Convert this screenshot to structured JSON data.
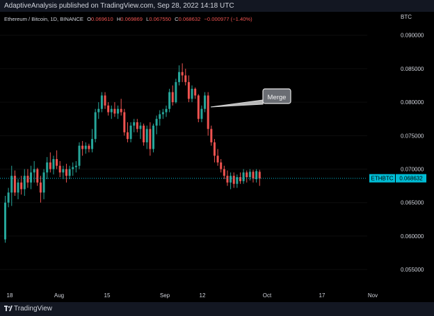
{
  "header": {
    "published": "AdaptiveAnalysis published on TradingView.com, Sep 28, 2022 14:18 UTC"
  },
  "footer": {
    "brand": "TradingView"
  },
  "colors": {
    "up": "#26a69a",
    "down": "#ef5350",
    "last_price": "#00bcd4",
    "bg": "#000000",
    "text": "#d1d4dc"
  },
  "legend": {
    "symbol": "Ethereum / Bitcoin, 1D, BINANCE",
    "o_label": "O",
    "o_value": "0.069610",
    "h_label": "H",
    "h_value": "0.069869",
    "l_label": "L",
    "l_value": "0.067550",
    "c_label": "C",
    "c_value": "0.068632",
    "change": "−0.000977 (−1.40%)"
  },
  "price_axis": {
    "unit": "BTC",
    "ticks": [
      "0.090000",
      "0.085000",
      "0.080000",
      "0.075000",
      "0.070000",
      "0.065000",
      "0.060000",
      "0.055000"
    ]
  },
  "time_axis": {
    "ticks": [
      "18",
      "Aug",
      "15",
      "Sep",
      "12",
      "Oct",
      "17",
      "Nov"
    ]
  },
  "last_price": {
    "symbol": "ETHBTC",
    "value": "0.068632"
  },
  "annotation": {
    "text": "Merge"
  },
  "chart_data": {
    "type": "candlestick",
    "symbol": "ETHBTC",
    "interval": "1D",
    "exchange": "BINANCE",
    "ylim": [
      0.052,
      0.0935
    ],
    "ohlc": [
      [
        0.0595,
        0.066,
        0.059,
        0.065
      ],
      [
        0.065,
        0.0672,
        0.0643,
        0.0665
      ],
      [
        0.0665,
        0.0705,
        0.0645,
        0.069
      ],
      [
        0.069,
        0.0698,
        0.066,
        0.0665
      ],
      [
        0.0665,
        0.0685,
        0.0655,
        0.068
      ],
      [
        0.068,
        0.069,
        0.0662,
        0.067
      ],
      [
        0.067,
        0.07,
        0.066,
        0.069
      ],
      [
        0.069,
        0.07,
        0.0672,
        0.068
      ],
      [
        0.068,
        0.0705,
        0.067,
        0.0695
      ],
      [
        0.0695,
        0.0712,
        0.068,
        0.07
      ],
      [
        0.07,
        0.0702,
        0.0675,
        0.068
      ],
      [
        0.068,
        0.069,
        0.065,
        0.0665
      ],
      [
        0.0665,
        0.07,
        0.0655,
        0.0695
      ],
      [
        0.0695,
        0.0718,
        0.0685,
        0.071
      ],
      [
        0.071,
        0.0725,
        0.0695,
        0.07
      ],
      [
        0.07,
        0.072,
        0.0692,
        0.0715
      ],
      [
        0.0715,
        0.0728,
        0.07,
        0.0705
      ],
      [
        0.0705,
        0.0712,
        0.0688,
        0.0695
      ],
      [
        0.0695,
        0.0705,
        0.0685,
        0.07
      ],
      [
        0.07,
        0.0708,
        0.068,
        0.069
      ],
      [
        0.069,
        0.0705,
        0.0685,
        0.07
      ],
      [
        0.07,
        0.071,
        0.069,
        0.0703
      ],
      [
        0.0703,
        0.0712,
        0.0695,
        0.0705
      ],
      [
        0.0705,
        0.074,
        0.07,
        0.0735
      ],
      [
        0.0735,
        0.0742,
        0.072,
        0.073
      ],
      [
        0.073,
        0.074,
        0.0723,
        0.0735
      ],
      [
        0.0735,
        0.0738,
        0.0725,
        0.073
      ],
      [
        0.073,
        0.076,
        0.0725,
        0.0745
      ],
      [
        0.0745,
        0.079,
        0.074,
        0.0785
      ],
      [
        0.0785,
        0.08,
        0.0775,
        0.079
      ],
      [
        0.079,
        0.0815,
        0.0785,
        0.081
      ],
      [
        0.081,
        0.0815,
        0.079,
        0.0795
      ],
      [
        0.0795,
        0.08,
        0.078,
        0.0785
      ],
      [
        0.0785,
        0.0795,
        0.0775,
        0.079
      ],
      [
        0.079,
        0.08,
        0.0778,
        0.0783
      ],
      [
        0.0783,
        0.0795,
        0.0775,
        0.079
      ],
      [
        0.079,
        0.0805,
        0.078,
        0.0785
      ],
      [
        0.0785,
        0.079,
        0.075,
        0.0755
      ],
      [
        0.0755,
        0.077,
        0.074,
        0.0745
      ],
      [
        0.0745,
        0.077,
        0.074,
        0.0765
      ],
      [
        0.0765,
        0.0775,
        0.0755,
        0.077
      ],
      [
        0.077,
        0.0775,
        0.0755,
        0.076
      ],
      [
        0.076,
        0.077,
        0.0745,
        0.0765
      ],
      [
        0.0765,
        0.0768,
        0.0735,
        0.074
      ],
      [
        0.074,
        0.0765,
        0.073,
        0.076
      ],
      [
        0.076,
        0.077,
        0.072,
        0.073
      ],
      [
        0.073,
        0.0768,
        0.0725,
        0.0765
      ],
      [
        0.0765,
        0.078,
        0.0752,
        0.0775
      ],
      [
        0.0775,
        0.0788,
        0.0765,
        0.0782
      ],
      [
        0.0782,
        0.079,
        0.0775,
        0.0785
      ],
      [
        0.0785,
        0.0795,
        0.0778,
        0.079
      ],
      [
        0.079,
        0.082,
        0.0785,
        0.0815
      ],
      [
        0.0815,
        0.0825,
        0.0795,
        0.08
      ],
      [
        0.08,
        0.0835,
        0.0798,
        0.083
      ],
      [
        0.083,
        0.0855,
        0.0825,
        0.0845
      ],
      [
        0.0845,
        0.0858,
        0.083,
        0.084
      ],
      [
        0.084,
        0.085,
        0.0825,
        0.083
      ],
      [
        0.083,
        0.084,
        0.08,
        0.0805
      ],
      [
        0.0805,
        0.0825,
        0.08,
        0.082
      ],
      [
        0.082,
        0.0822,
        0.0805,
        0.081
      ],
      [
        0.081,
        0.0812,
        0.077,
        0.0775
      ],
      [
        0.0775,
        0.0795,
        0.077,
        0.079
      ],
      [
        0.079,
        0.0815,
        0.0785,
        0.081
      ],
      [
        0.081,
        0.0815,
        0.075,
        0.076
      ],
      [
        0.076,
        0.0765,
        0.0735,
        0.074
      ],
      [
        0.074,
        0.0745,
        0.071,
        0.072
      ],
      [
        0.072,
        0.073,
        0.0705,
        0.071
      ],
      [
        0.071,
        0.0715,
        0.0695,
        0.07
      ],
      [
        0.07,
        0.0705,
        0.0685,
        0.069
      ],
      [
        0.069,
        0.0698,
        0.0675,
        0.068
      ],
      [
        0.068,
        0.0695,
        0.067,
        0.069
      ],
      [
        0.069,
        0.0695,
        0.0672,
        0.0678
      ],
      [
        0.0678,
        0.0692,
        0.0672,
        0.0688
      ],
      [
        0.0688,
        0.0695,
        0.0678,
        0.0682
      ],
      [
        0.0682,
        0.07,
        0.0678,
        0.0695
      ],
      [
        0.0695,
        0.0698,
        0.068,
        0.0688
      ],
      [
        0.0688,
        0.07,
        0.0683,
        0.0696
      ],
      [
        0.0696,
        0.0699,
        0.068,
        0.0686
      ],
      [
        0.0685,
        0.07,
        0.068,
        0.0697
      ],
      [
        0.0696,
        0.0699,
        0.0675,
        0.0686
      ]
    ]
  }
}
